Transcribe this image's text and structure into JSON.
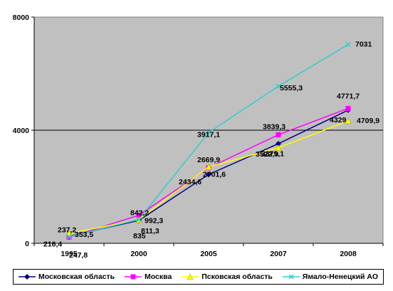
{
  "chart_data": {
    "type": "line",
    "x": [
      "1995",
      "2000",
      "2005",
      "2007",
      "2008"
    ],
    "ylim": [
      0,
      8000
    ],
    "yticks": [
      "0",
      "4000",
      "8000"
    ],
    "grid": "horizontal",
    "legend_position": "bottom",
    "series": [
      {
        "name": "Московская область",
        "color": "#000080",
        "marker": "diamond",
        "values": [
          247.8,
          811.3,
          2434.6,
          3522.9,
          4709.9
        ],
        "labels": [
          "247,8",
          "811,3",
          "2434,6",
          "3522,9",
          "4709,9"
        ]
      },
      {
        "name": "Москва",
        "color": "#ff00ff",
        "marker": "square",
        "values": [
          216.4,
          992.3,
          2669.9,
          3839.3,
          4771.7
        ],
        "labels": [
          "216,4",
          "992,3",
          "2669,9",
          "3839,3",
          "4771,7"
        ]
      },
      {
        "name": "Псковская область",
        "color": "#ffff00",
        "marker": "triangle",
        "values": [
          353.5,
          835,
          2701.6,
          3379.1,
          4329
        ],
        "labels": [
          "353,5",
          "835",
          "2701,6",
          "3379,1",
          "4329"
        ]
      },
      {
        "name": "Ямало-Ненецкий АО",
        "color": "#33cccc",
        "marker": "x",
        "values": [
          237.2,
          842.2,
          3917.1,
          5555.3,
          7031
        ],
        "labels": [
          "237,2",
          "842,2",
          "3917,1",
          "5555,3",
          "7031"
        ]
      }
    ]
  }
}
